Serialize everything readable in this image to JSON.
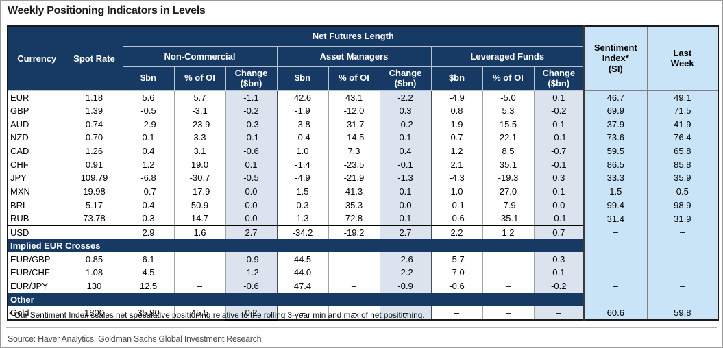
{
  "title": "Weekly Positioning Indicators in Levels",
  "colors": {
    "header_navy": "#173A64",
    "light_blue_columns": "#C9E4F6",
    "change_column_bg": "#DBE4EE",
    "header_text": "#ffffff",
    "body_text": "#000000",
    "source_text": "#4d4d4d"
  },
  "chart_data": {
    "type": "table",
    "title": "Weekly Positioning Indicators in Levels",
    "header": {
      "currency": "Currency",
      "spot_rate": "Spot Rate",
      "net_futures_length": "Net Futures Length",
      "groups": [
        "Non-Commercial",
        "Asset Managers",
        "Leveraged Funds"
      ],
      "subcols": [
        "$bn",
        "% of OI",
        "Change\n($bn)"
      ],
      "sentiment_index": "Sentiment\nIndex*\n(SI)",
      "last_week": "Last\nWeek"
    },
    "columns": [
      "Currency",
      "Spot Rate",
      "NC $bn",
      "NC % of OI",
      "NC Change ($bn)",
      "AM $bn",
      "AM % of OI",
      "AM Change ($bn)",
      "LF $bn",
      "LF % of OI",
      "LF Change ($bn)",
      "Sentiment Index* (SI)",
      "Last Week"
    ],
    "rows": [
      {
        "type": "data",
        "cells": [
          "EUR",
          "1.18",
          "5.6",
          "5.7",
          "-1.1",
          "42.6",
          "43.1",
          "-2.2",
          "-4.9",
          "-5.0",
          "0.1",
          "46.7",
          "49.1"
        ]
      },
      {
        "type": "data",
        "cells": [
          "GBP",
          "1.39",
          "-0.5",
          "-3.1",
          "-0.2",
          "-1.9",
          "-12.0",
          "0.3",
          "0.8",
          "5.3",
          "-0.2",
          "69.9",
          "71.5"
        ]
      },
      {
        "type": "data",
        "cells": [
          "AUD",
          "0.74",
          "-2.9",
          "-23.9",
          "-0.3",
          "-3.8",
          "-31.7",
          "-0.2",
          "1.9",
          "15.5",
          "0.1",
          "37.9",
          "41.9"
        ]
      },
      {
        "type": "data",
        "cells": [
          "NZD",
          "0.70",
          "0.1",
          "3.3",
          "-0.1",
          "-0.4",
          "-14.5",
          "0.1",
          "0.7",
          "22.1",
          "-0.1",
          "73.6",
          "76.4"
        ]
      },
      {
        "type": "data",
        "cells": [
          "CAD",
          "1.26",
          "0.4",
          "3.1",
          "-0.6",
          "1.0",
          "7.3",
          "0.4",
          "1.2",
          "8.5",
          "-0.7",
          "59.5",
          "65.8"
        ]
      },
      {
        "type": "data",
        "cells": [
          "CHF",
          "0.91",
          "1.2",
          "19.0",
          "0.1",
          "-1.4",
          "-23.5",
          "-0.1",
          "2.1",
          "35.1",
          "-0.1",
          "86.5",
          "85.8"
        ]
      },
      {
        "type": "data",
        "cells": [
          "JPY",
          "109.79",
          "-6.8",
          "-30.7",
          "-0.5",
          "-4.9",
          "-21.9",
          "-1.3",
          "-4.3",
          "-19.3",
          "0.3",
          "33.3",
          "35.9"
        ]
      },
      {
        "type": "data",
        "cells": [
          "MXN",
          "19.98",
          "-0.7",
          "-17.9",
          "0.0",
          "1.5",
          "41.3",
          "0.1",
          "1.0",
          "27.0",
          "0.1",
          "1.5",
          "0.5"
        ]
      },
      {
        "type": "data",
        "cells": [
          "BRL",
          "5.17",
          "0.4",
          "50.9",
          "0.0",
          "0.3",
          "35.3",
          "0.0",
          "-0.1",
          "-7.9",
          "0.0",
          "99.4",
          "98.9"
        ]
      },
      {
        "type": "data",
        "cells": [
          "RUB",
          "73.78",
          "0.3",
          "14.7",
          "0.0",
          "1.3",
          "72.8",
          "0.1",
          "-0.6",
          "-35.1",
          "-0.1",
          "31.4",
          "31.9"
        ]
      },
      {
        "type": "data",
        "emphasis_top": true,
        "cells": [
          "USD",
          "",
          "2.9",
          "1.6",
          "2.7",
          "-34.2",
          "-19.2",
          "2.7",
          "2.2",
          "1.2",
          "0.7",
          "–",
          "–"
        ]
      },
      {
        "type": "section",
        "label": "Implied EUR Crosses"
      },
      {
        "type": "data",
        "cells": [
          "EUR/GBP",
          "0.85",
          "6.1",
          "–",
          "-0.9",
          "44.5",
          "–",
          "-2.6",
          "-5.7",
          "–",
          "0.3",
          "–",
          "–"
        ]
      },
      {
        "type": "data",
        "cells": [
          "EUR/CHF",
          "1.08",
          "4.5",
          "–",
          "-1.2",
          "44.0",
          "–",
          "-2.2",
          "-7.0",
          "–",
          "0.1",
          "–",
          "–"
        ]
      },
      {
        "type": "data",
        "cells": [
          "EUR/JPY",
          "130",
          "12.5",
          "–",
          "-0.6",
          "47.4",
          "–",
          "-0.9",
          "-0.6",
          "–",
          "-0.2",
          "–",
          "–"
        ]
      },
      {
        "type": "section",
        "label": "Other"
      },
      {
        "type": "data",
        "thick_bottom_change": true,
        "cells": [
          "Gold",
          "1800",
          "35.90",
          "45.5",
          "0.2",
          "–",
          "–",
          "–",
          "–",
          "–",
          "–",
          "60.6",
          "59.8"
        ]
      }
    ],
    "footnote": "* Our Sentiment Index scales net speculative positioning relative to the rolling 3-year min and max of net positioning.",
    "source": "Source: Haver Analytics, Goldman Sachs Global Investment Research"
  }
}
